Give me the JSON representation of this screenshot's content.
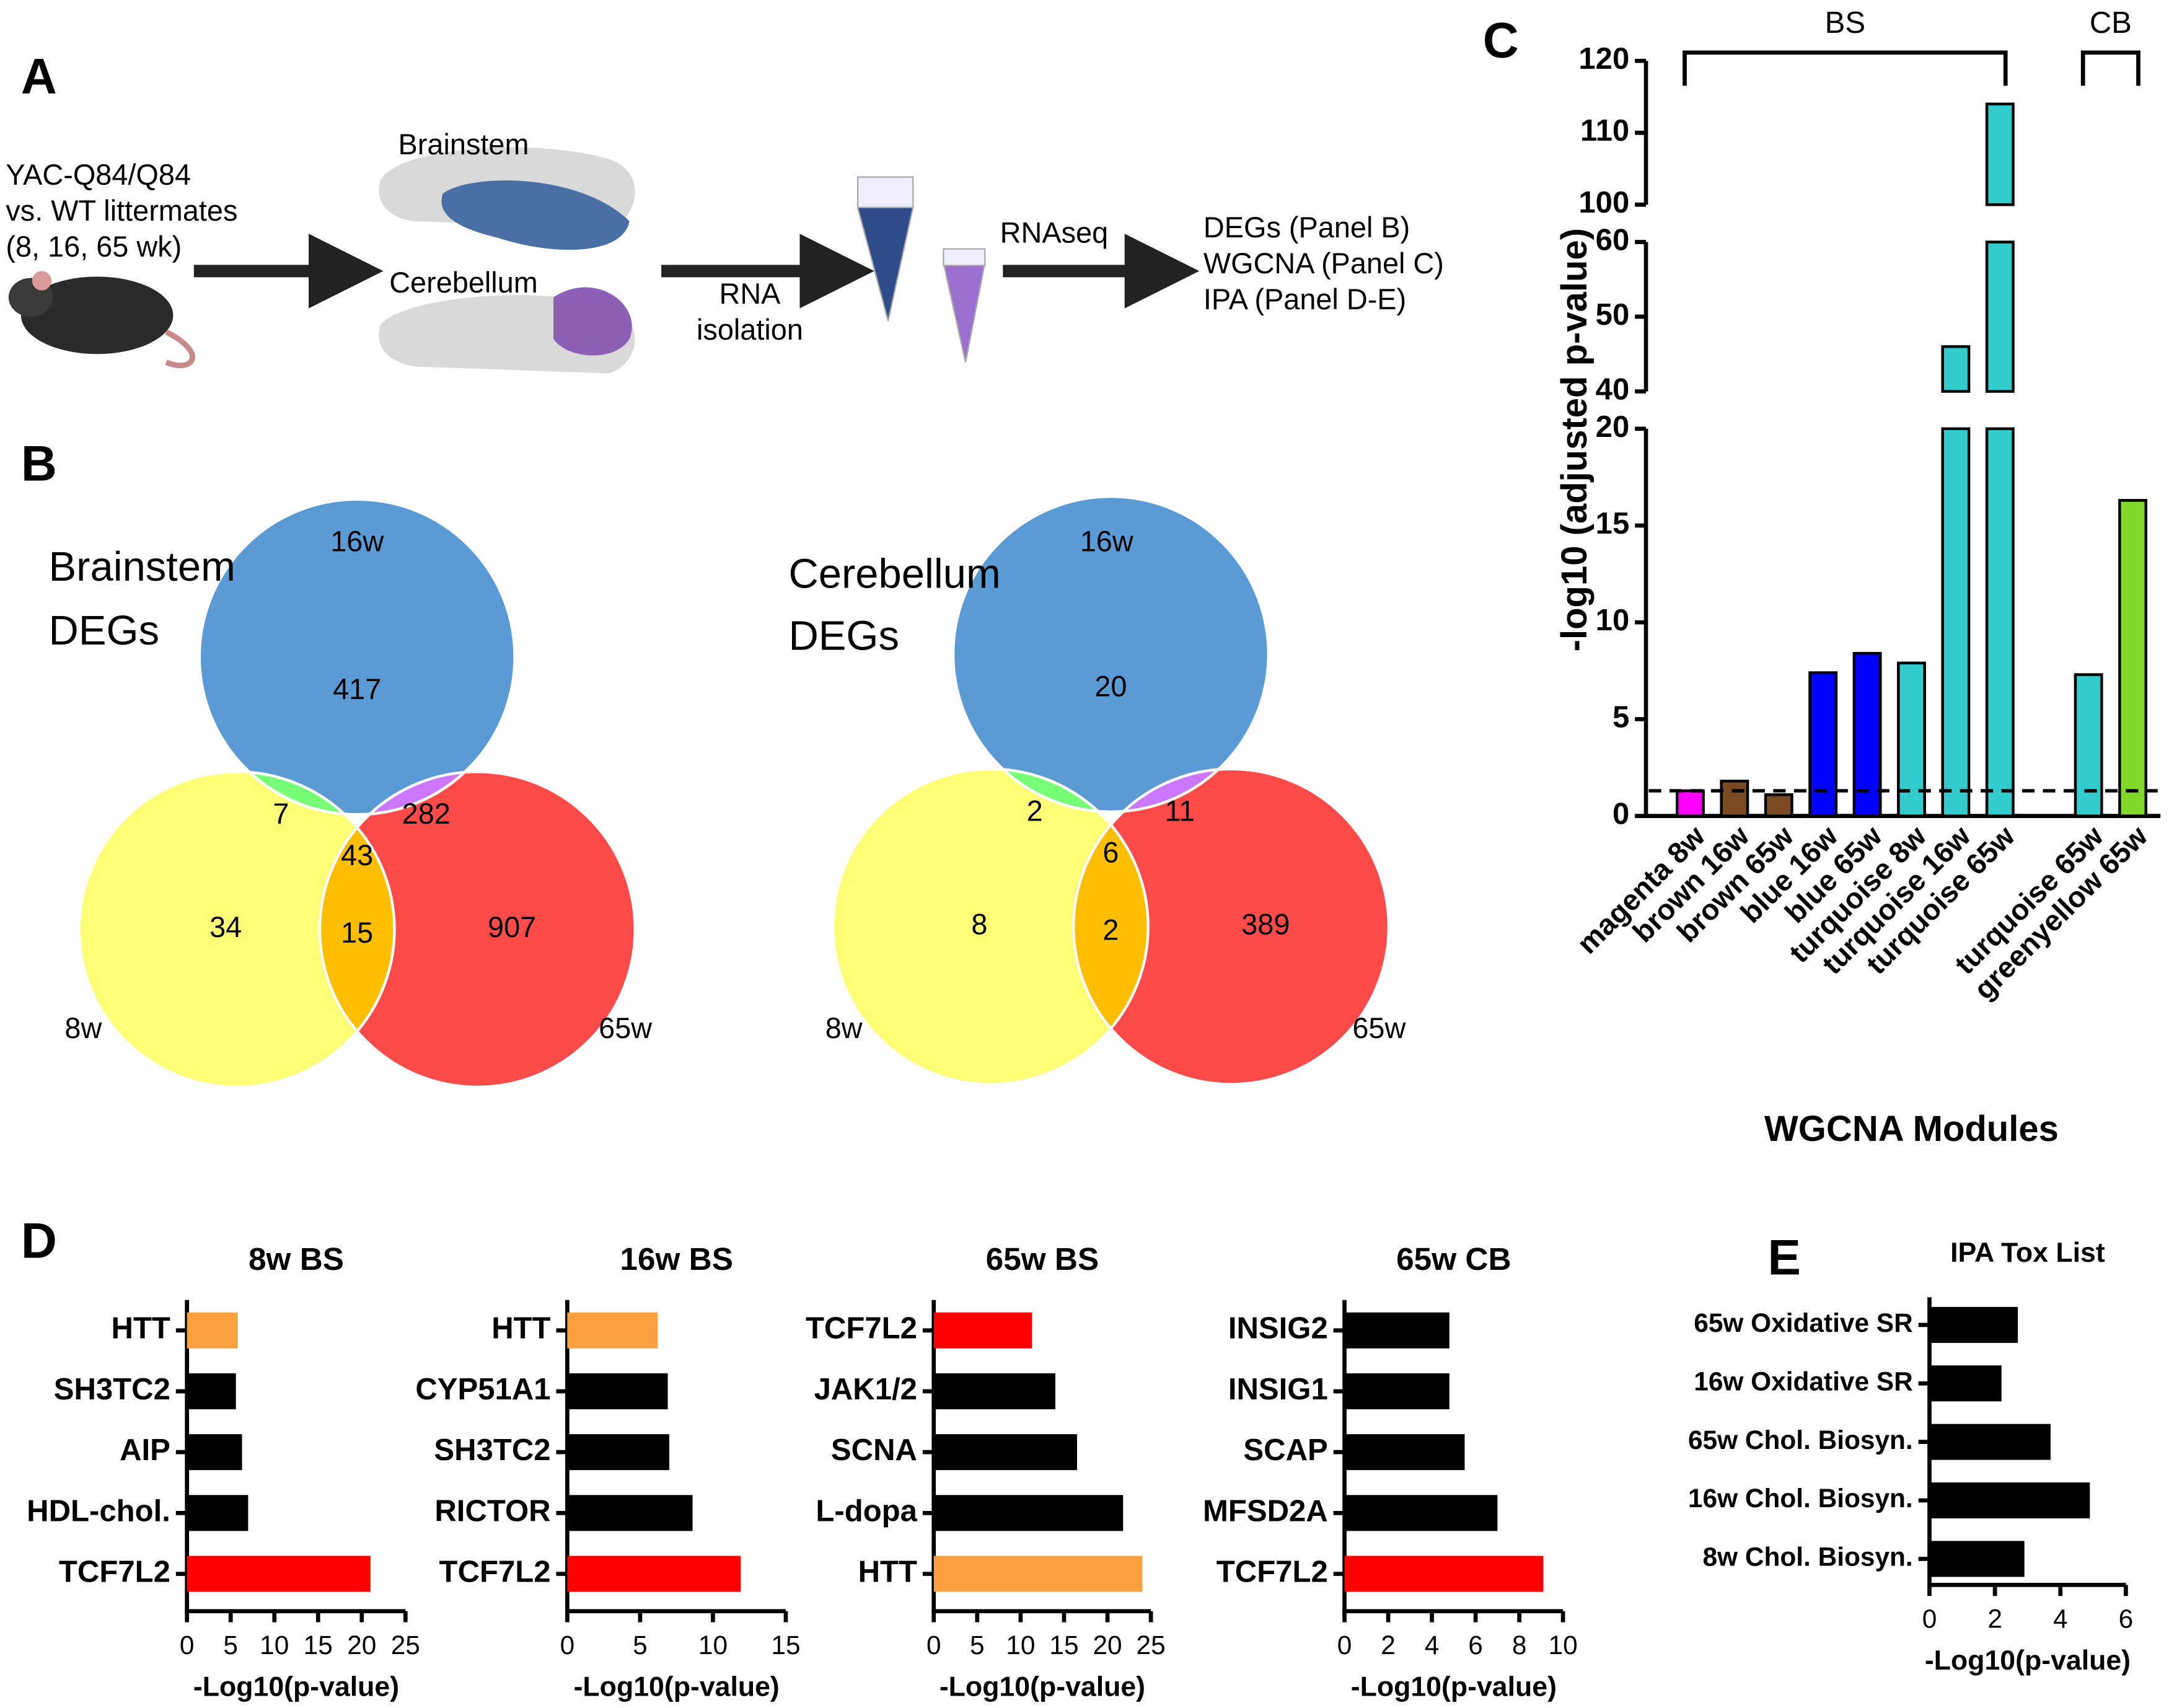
{
  "panel_labels": [
    "A",
    "B",
    "C",
    "D",
    "E"
  ],
  "diagram": {
    "subject": [
      "YAC-Q84/Q84",
      "vs. WT littermates",
      "(8, 16, 65 wk)"
    ],
    "regions": [
      "Brainstem",
      "Cerebellum"
    ],
    "step1": [
      "RNA",
      "isolation"
    ],
    "step2": "RNAseq",
    "outputs": [
      "DEGs (Panel B)",
      "WGCNA (Panel C)",
      "IPA (Panel D-E)"
    ]
  },
  "venn": [
    {
      "title": [
        "Brainstem",
        "DEGs"
      ],
      "sets": [
        "16w",
        "8w",
        "65w"
      ],
      "regions": [
        417,
        7,
        282,
        43,
        34,
        15,
        907
      ]
    },
    {
      "title": [
        "Cerebellum",
        "DEGs"
      ],
      "sets": [
        "16w",
        "8w",
        "65w"
      ],
      "regions": [
        20,
        2,
        11,
        6,
        8,
        2,
        389
      ]
    }
  ],
  "chart_data": [
    {
      "type": "bar",
      "categories": [
        "magenta 8w",
        "brown 16w",
        "brown 65w",
        "blue 16w",
        "blue 65w",
        "turquoise 8w",
        "turquoise 16w",
        "turquoise 65w",
        null,
        "turquoise 65w",
        "greenyellow 65w"
      ],
      "values": [
        1.3,
        1.8,
        1.1,
        7.4,
        8.4,
        7.9,
        46,
        114,
        null,
        7.3,
        16.3
      ],
      "colors": [
        "#ff00ff",
        "#7a4a22",
        "#7a4a22",
        "#0000ff",
        "#0000ff",
        "#33cccc",
        "#33cccc",
        "#33cccc",
        null,
        "#33cccc",
        "#7fd82a"
      ],
      "groups": [
        "BS",
        "BS",
        "BS",
        "BS",
        "BS",
        "BS",
        "BS",
        "BS",
        null,
        "CB",
        "CB"
      ],
      "ylabel": "-log10 (adjusted p-value)",
      "xlabel": "WGCNA Modules",
      "ylim": [
        0,
        120
      ],
      "axis_breaks": [
        [
          20,
          40
        ],
        [
          60,
          100
        ]
      ],
      "yticks": [
        0,
        5,
        10,
        15,
        20,
        40,
        50,
        60,
        100,
        110,
        120
      ],
      "threshold": 1.3
    },
    {
      "type": "hbar",
      "title": "8w BS",
      "categories": [
        "HTT",
        "SH3TC2",
        "AIP",
        "HDL-chol.",
        "TCF7L2"
      ],
      "values": [
        5.8,
        5.6,
        6.3,
        7.0,
        21
      ],
      "colors": [
        "#fba040",
        "#000000",
        "#000000",
        "#000000",
        "#ff0000"
      ],
      "xlabel": "-Log10(p-value)",
      "xlim": [
        0,
        25
      ],
      "xticks": [
        0,
        5,
        10,
        15,
        20,
        25
      ]
    },
    {
      "type": "hbar",
      "title": "16w BS",
      "categories": [
        "HTT",
        "CYP51A1",
        "SH3TC2",
        "RICTOR",
        "TCF7L2"
      ],
      "values": [
        6.2,
        6.9,
        7.0,
        8.6,
        11.9
      ],
      "colors": [
        "#fba040",
        "#000000",
        "#000000",
        "#000000",
        "#ff0000"
      ],
      "xlabel": "-Log10(p-value)",
      "xlim": [
        0,
        15
      ],
      "xticks": [
        0,
        5,
        10,
        15
      ]
    },
    {
      "type": "hbar",
      "title": "65w BS",
      "categories": [
        "TCF7L2",
        "JAK1/2",
        "SCNA",
        "L-dopa",
        "HTT"
      ],
      "values": [
        11.3,
        14,
        16.5,
        21.8,
        24
      ],
      "colors": [
        "#ff0000",
        "#000000",
        "#000000",
        "#000000",
        "#fba040"
      ],
      "xlabel": "-Log10(p-value)",
      "xlim": [
        0,
        25
      ],
      "xticks": [
        0,
        5,
        10,
        15,
        20,
        25
      ]
    },
    {
      "type": "hbar",
      "title": "65w CB",
      "categories": [
        "INSIG2",
        "INSIG1",
        "SCAP",
        "MFSD2A",
        "TCF7L2"
      ],
      "values": [
        4.8,
        4.8,
        5.5,
        7.0,
        9.1
      ],
      "colors": [
        "#000000",
        "#000000",
        "#000000",
        "#000000",
        "#ff0000"
      ],
      "xlabel": "-Log10(p-value)",
      "xlim": [
        0,
        10
      ],
      "xticks": [
        0,
        2,
        4,
        6,
        8,
        10
      ]
    },
    {
      "type": "hbar",
      "title": "IPA Tox List",
      "categories": [
        "65w Oxidative SR",
        "16w Oxidative SR",
        "65w Chol. Biosyn.",
        "16w Chol. Biosyn.",
        "8w Chol. Biosyn."
      ],
      "values": [
        2.7,
        2.2,
        3.7,
        4.9,
        2.9
      ],
      "colors": [
        "#000000",
        "#000000",
        "#000000",
        "#000000",
        "#000000"
      ],
      "xlabel": "-Log10(p-value)",
      "xlim": [
        0,
        6
      ],
      "xticks": [
        0,
        2,
        4,
        6
      ]
    }
  ]
}
